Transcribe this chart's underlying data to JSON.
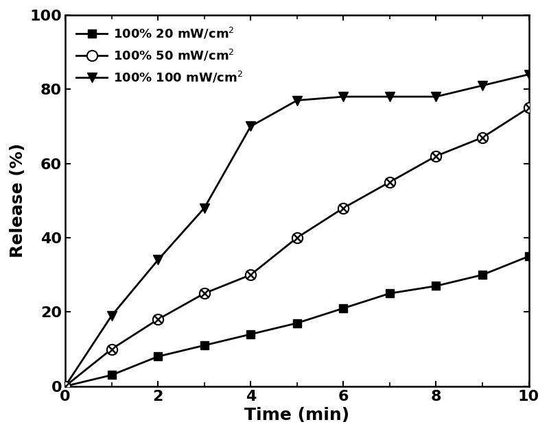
{
  "x": [
    0,
    1,
    2,
    3,
    4,
    5,
    6,
    7,
    8,
    9,
    10
  ],
  "series_20mw": [
    0,
    3,
    8,
    11,
    14,
    17,
    21,
    25,
    27,
    30,
    35
  ],
  "series_50mw": [
    0,
    10,
    18,
    25,
    30,
    40,
    48,
    55,
    62,
    67,
    75
  ],
  "series_100mw": [
    0,
    19,
    34,
    48,
    70,
    77,
    78,
    78,
    78,
    81,
    84
  ],
  "xlabel": "Time (min)",
  "ylabel": "Release (%)",
  "xlim": [
    0,
    10
  ],
  "ylim": [
    0,
    100
  ],
  "xticks_major": [
    0,
    2,
    4,
    6,
    8,
    10
  ],
  "xticks_minor": [
    1,
    3,
    5,
    7,
    9
  ],
  "yticks": [
    0,
    20,
    40,
    60,
    80,
    100
  ],
  "label_20mw": "100% 20 mW/cm$^2$",
  "label_50mw": "100% 50 mW/cm$^2$",
  "label_100mw": "100% 100 mW/cm$^2$",
  "line_color": "#000000",
  "bg_color": "#ffffff",
  "linewidth": 2.0,
  "markersize": 9,
  "figsize": [
    8.0,
    6.32
  ],
  "dpi": 100
}
